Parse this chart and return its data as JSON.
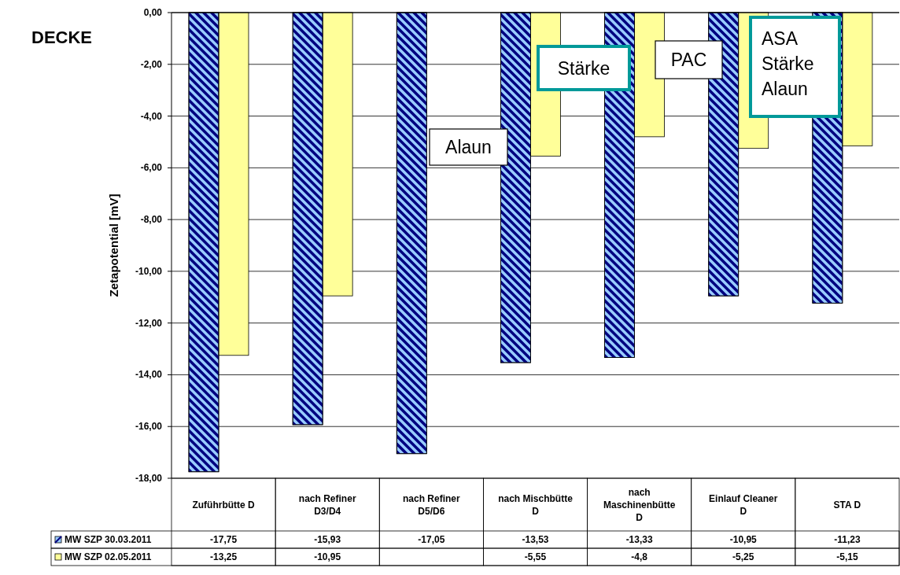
{
  "chart_data": {
    "type": "bar",
    "title": "DECKE",
    "ylabel": "Zetapotential [mV]",
    "categories": [
      "Zuführbütte D",
      "nach Refiner D3/D4",
      "nach Refiner D5/D6",
      "nach Mischbütte D",
      "nach Maschinenbütte D",
      "Einlauf Cleaner D",
      "STA D"
    ],
    "series": [
      {
        "name": "MW SZP 30.03.2011",
        "color": "#99ccff",
        "values": [
          -17.75,
          -15.93,
          -17.05,
          -13.53,
          -13.33,
          -10.95,
          -11.23
        ],
        "value_labels": [
          "-17,75",
          "-15,93",
          "-17,05",
          "-13,53",
          "-13,33",
          "-10,95",
          "-11,23"
        ]
      },
      {
        "name": "MW SZP 02.05.2011",
        "color": "#ffff99",
        "values": [
          -13.25,
          -10.95,
          null,
          -5.55,
          -4.8,
          -5.25,
          -5.15
        ],
        "value_labels": [
          "-13,25",
          "-10,95",
          null,
          "-5,55",
          "-4,8",
          "-5,25",
          "-5,15"
        ]
      }
    ],
    "ylim": [
      -18,
      0
    ],
    "yticks": [
      {
        "value": 0,
        "label": "0,00"
      },
      {
        "value": -2,
        "label": "-2,00"
      },
      {
        "value": -4,
        "label": "-4,00"
      },
      {
        "value": -6,
        "label": "-6,00"
      },
      {
        "value": -8,
        "label": "-8,00"
      },
      {
        "value": -10,
        "label": "-10,00"
      },
      {
        "value": -12,
        "label": "-12,00"
      },
      {
        "value": -14,
        "label": "-14,00"
      },
      {
        "value": -16,
        "label": "-16,00"
      },
      {
        "value": -18,
        "label": "-18,00"
      }
    ],
    "grid": "y",
    "legend": "bottom",
    "annotations": [
      "Alaun",
      "Stärke",
      "PAC",
      "ASA\nStärke\nAlaun"
    ]
  }
}
